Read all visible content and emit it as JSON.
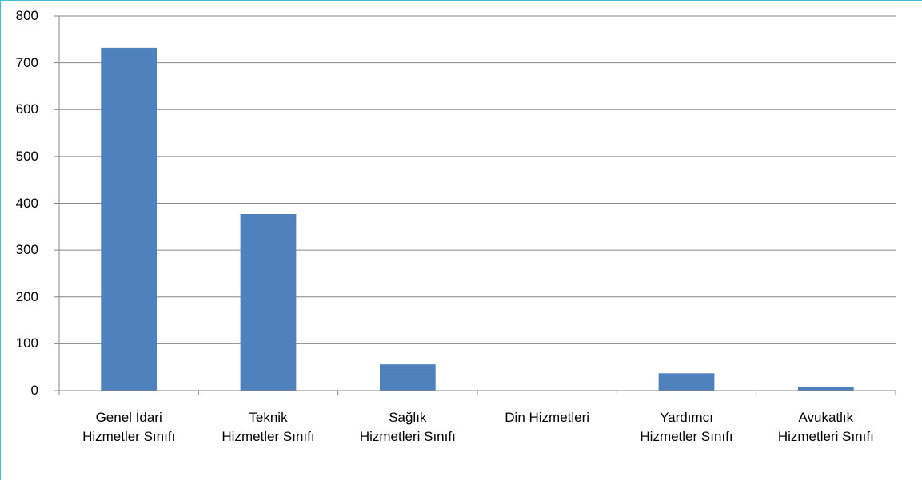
{
  "chart_data": {
    "type": "bar",
    "categories": [
      "Genel İdari\nHizmetler Sınıfı",
      "Teknik\nHizmetler Sınıfı",
      "Sağlık\nHizmetleri Sınıfı",
      "Din Hizmetleri",
      "Yardımcı\nHizmetler Sınıfı",
      "Avukatlık\nHizmetleri Sınıfı"
    ],
    "values": [
      732,
      377,
      56,
      0,
      37,
      8
    ],
    "color": "#4f81bd",
    "ylim": [
      0,
      800
    ],
    "yticks": [
      0,
      100,
      200,
      300,
      400,
      500,
      600,
      700,
      800
    ],
    "grid": true
  }
}
